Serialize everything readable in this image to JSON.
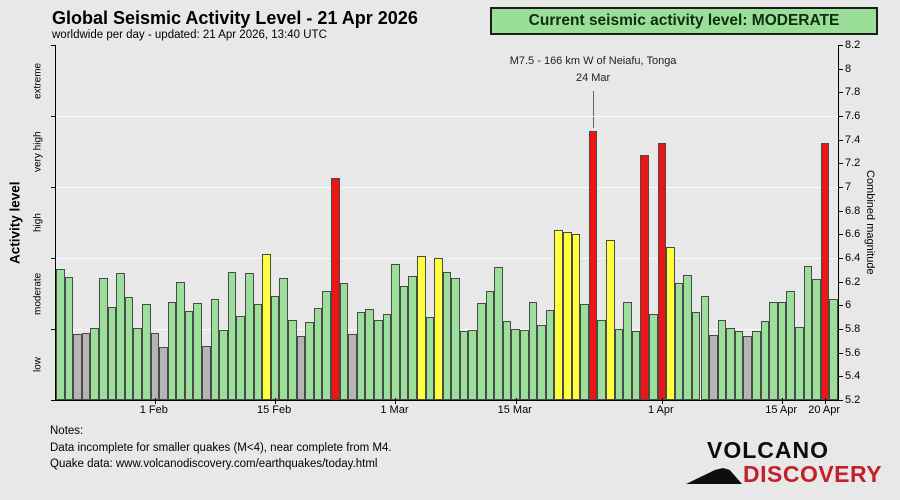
{
  "header": {
    "title": "Global Seismic Activity Level - 21 Apr 2026",
    "subtitle": "worldwide per day - updated: 21 Apr 2026, 13:40 UTC"
  },
  "status_banner": {
    "text": "Current seismic activity level: MODERATE",
    "bg": "#9ade9a",
    "text_color": "#0d2e0d"
  },
  "chart_data": {
    "type": "bar",
    "title": "Global Seismic Activity Level - 21 Apr 2026",
    "y_axis_left": {
      "label": "Activity level",
      "categories": [
        "extreme",
        "very high",
        "high",
        "moderate",
        "low"
      ]
    },
    "y_axis_right": {
      "label": "Combined magnitude",
      "min": 5.2,
      "max": 8.2,
      "tick_step": 0.2
    },
    "x_ticks": [
      {
        "label": "1 Feb",
        "day": 12
      },
      {
        "label": "15 Feb",
        "day": 26
      },
      {
        "label": "1 Mar",
        "day": 40
      },
      {
        "label": "15 Mar",
        "day": 54
      },
      {
        "label": "1 Apr",
        "day": 71
      },
      {
        "label": "15 Apr",
        "day": 85
      },
      {
        "label": "20 Apr",
        "day": 90
      }
    ],
    "values": [
      6.31,
      6.24,
      5.76,
      5.77,
      5.81,
      6.23,
      5.99,
      6.27,
      6.07,
      5.81,
      6.01,
      5.77,
      5.65,
      6.03,
      6.2,
      5.95,
      6.02,
      5.66,
      6.05,
      5.79,
      6.28,
      5.91,
      6.27,
      6.01,
      6.43,
      6.08,
      6.23,
      5.88,
      5.74,
      5.86,
      5.98,
      6.12,
      7.08,
      6.19,
      5.76,
      5.94,
      5.97,
      5.88,
      5.93,
      6.35,
      6.16,
      6.25,
      6.42,
      5.9,
      6.4,
      6.28,
      6.23,
      5.78,
      5.79,
      6.02,
      6.12,
      6.32,
      5.87,
      5.8,
      5.79,
      6.03,
      5.83,
      5.96,
      6.64,
      6.62,
      6.6,
      6.01,
      7.47,
      5.88,
      6.55,
      5.8,
      6.03,
      5.78,
      7.27,
      5.93,
      7.37,
      6.49,
      6.19,
      6.26,
      5.94,
      6.08,
      5.75,
      5.88,
      5.81,
      5.78,
      5.74,
      5.78,
      5.87,
      6.03,
      6.03,
      6.12,
      5.82,
      6.33,
      6.22,
      7.37,
      6.05
    ],
    "colors": [
      "green",
      "green",
      "gray",
      "gray",
      "green",
      "green",
      "green",
      "green",
      "green",
      "green",
      "green",
      "gray",
      "gray",
      "green",
      "green",
      "green",
      "green",
      "gray",
      "green",
      "green",
      "green",
      "green",
      "green",
      "green",
      "yellow",
      "green",
      "green",
      "green",
      "gray",
      "green",
      "green",
      "green",
      "red",
      "green",
      "gray",
      "green",
      "green",
      "green",
      "green",
      "green",
      "green",
      "green",
      "yellow",
      "green",
      "yellow",
      "green",
      "green",
      "green",
      "green",
      "green",
      "green",
      "green",
      "green",
      "green",
      "green",
      "green",
      "green",
      "green",
      "yellow",
      "yellow",
      "yellow",
      "green",
      "red",
      "green",
      "yellow",
      "green",
      "green",
      "green",
      "red",
      "green",
      "red",
      "yellow",
      "green",
      "green",
      "green",
      "green",
      "gray",
      "green",
      "green",
      "green",
      "gray",
      "green",
      "green",
      "green",
      "green",
      "green",
      "green",
      "green",
      "green",
      "red",
      "green"
    ],
    "palette": {
      "green": "#9bdf9b",
      "gray": "#b5b5b5",
      "yellow": "#ffff3d",
      "red": "#ee1515"
    },
    "annotation": {
      "line1": "M7.5 - 166 km W of Neiafu, Tonga",
      "line2": "24 Mar",
      "day": 63
    }
  },
  "notes": {
    "heading": "Notes:",
    "line1": "Data incomplete for smaller quakes (M<4), near complete from M4.",
    "line2": "Quake data: www.volcanodiscovery.com/earthquakes/today.html"
  },
  "logo": {
    "line1": "VOLCANO",
    "line2": "DISCOVERY",
    "accent": "#c2202a"
  }
}
